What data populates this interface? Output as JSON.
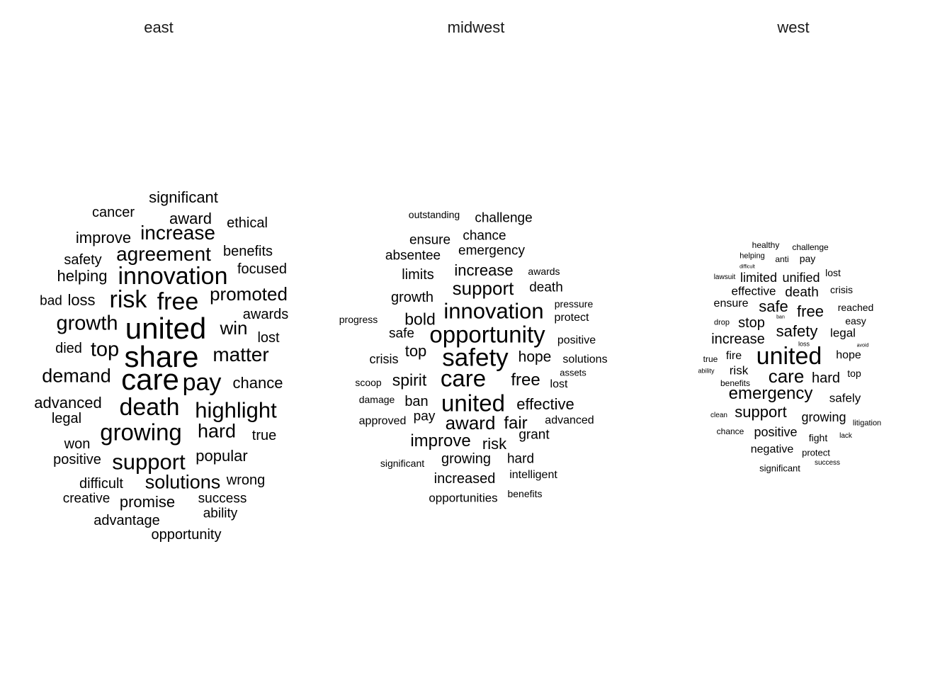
{
  "chart_data": [
    {
      "type": "wordcloud",
      "title": "east",
      "words": [
        {
          "text": "significant",
          "weight": 2
        },
        {
          "text": "cancer",
          "weight": 2
        },
        {
          "text": "award",
          "weight": 2
        },
        {
          "text": "ethical",
          "weight": 2
        },
        {
          "text": "improve",
          "weight": 2
        },
        {
          "text": "increase",
          "weight": 3
        },
        {
          "text": "safety",
          "weight": 2
        },
        {
          "text": "agreement",
          "weight": 3
        },
        {
          "text": "benefits",
          "weight": 2
        },
        {
          "text": "helping",
          "weight": 2
        },
        {
          "text": "innovation",
          "weight": 4
        },
        {
          "text": "focused",
          "weight": 2
        },
        {
          "text": "bad",
          "weight": 2
        },
        {
          "text": "loss",
          "weight": 2
        },
        {
          "text": "risk",
          "weight": 4
        },
        {
          "text": "free",
          "weight": 4
        },
        {
          "text": "promoted",
          "weight": 3
        },
        {
          "text": "awards",
          "weight": 2
        },
        {
          "text": "growth",
          "weight": 3
        },
        {
          "text": "united",
          "weight": 5
        },
        {
          "text": "win",
          "weight": 3
        },
        {
          "text": "lost",
          "weight": 2
        },
        {
          "text": "died",
          "weight": 2
        },
        {
          "text": "top",
          "weight": 3
        },
        {
          "text": "share",
          "weight": 5
        },
        {
          "text": "matter",
          "weight": 3
        },
        {
          "text": "demand",
          "weight": 3
        },
        {
          "text": "care",
          "weight": 5
        },
        {
          "text": "pay",
          "weight": 4
        },
        {
          "text": "chance",
          "weight": 2
        },
        {
          "text": "advanced",
          "weight": 2
        },
        {
          "text": "death",
          "weight": 4
        },
        {
          "text": "highlight",
          "weight": 3
        },
        {
          "text": "legal",
          "weight": 2
        },
        {
          "text": "growing",
          "weight": 4
        },
        {
          "text": "hard",
          "weight": 3
        },
        {
          "text": "true",
          "weight": 2
        },
        {
          "text": "won",
          "weight": 2
        },
        {
          "text": "positive",
          "weight": 2
        },
        {
          "text": "support",
          "weight": 4
        },
        {
          "text": "popular",
          "weight": 2
        },
        {
          "text": "difficult",
          "weight": 2
        },
        {
          "text": "solutions",
          "weight": 3
        },
        {
          "text": "wrong",
          "weight": 2
        },
        {
          "text": "creative",
          "weight": 2
        },
        {
          "text": "promise",
          "weight": 2
        },
        {
          "text": "success",
          "weight": 2
        },
        {
          "text": "ability",
          "weight": 2
        },
        {
          "text": "advantage",
          "weight": 2
        },
        {
          "text": "opportunity",
          "weight": 2
        }
      ]
    },
    {
      "type": "wordcloud",
      "title": "midwest",
      "words": [
        {
          "text": "outstanding",
          "weight": 1
        },
        {
          "text": "challenge",
          "weight": 2
        },
        {
          "text": "ensure",
          "weight": 2
        },
        {
          "text": "chance",
          "weight": 2
        },
        {
          "text": "absentee",
          "weight": 2
        },
        {
          "text": "emergency",
          "weight": 2
        },
        {
          "text": "limits",
          "weight": 2
        },
        {
          "text": "increase",
          "weight": 3
        },
        {
          "text": "awards",
          "weight": 1
        },
        {
          "text": "support",
          "weight": 3
        },
        {
          "text": "death",
          "weight": 2
        },
        {
          "text": "growth",
          "weight": 2
        },
        {
          "text": "pressure",
          "weight": 1
        },
        {
          "text": "innovation",
          "weight": 4
        },
        {
          "text": "progress",
          "weight": 1
        },
        {
          "text": "bold",
          "weight": 3
        },
        {
          "text": "protect",
          "weight": 1
        },
        {
          "text": "safe",
          "weight": 2
        },
        {
          "text": "opportunity",
          "weight": 4
        },
        {
          "text": "positive",
          "weight": 1
        },
        {
          "text": "top",
          "weight": 3
        },
        {
          "text": "crisis",
          "weight": 2
        },
        {
          "text": "safety",
          "weight": 4
        },
        {
          "text": "hope",
          "weight": 2
        },
        {
          "text": "solutions",
          "weight": 1
        },
        {
          "text": "assets",
          "weight": 1
        },
        {
          "text": "scoop",
          "weight": 1
        },
        {
          "text": "spirit",
          "weight": 3
        },
        {
          "text": "care",
          "weight": 4
        },
        {
          "text": "free",
          "weight": 3
        },
        {
          "text": "lost",
          "weight": 1
        },
        {
          "text": "damage",
          "weight": 1
        },
        {
          "text": "ban",
          "weight": 2
        },
        {
          "text": "united",
          "weight": 4
        },
        {
          "text": "effective",
          "weight": 2
        },
        {
          "text": "approved",
          "weight": 1
        },
        {
          "text": "pay",
          "weight": 2
        },
        {
          "text": "award",
          "weight": 3
        },
        {
          "text": "fair",
          "weight": 3
        },
        {
          "text": "advanced",
          "weight": 1
        },
        {
          "text": "grant",
          "weight": 2
        },
        {
          "text": "improve",
          "weight": 3
        },
        {
          "text": "risk",
          "weight": 3
        },
        {
          "text": "significant",
          "weight": 1
        },
        {
          "text": "growing",
          "weight": 2
        },
        {
          "text": "hard",
          "weight": 2
        },
        {
          "text": "intelligent",
          "weight": 1
        },
        {
          "text": "increased",
          "weight": 2
        },
        {
          "text": "opportunities",
          "weight": 2
        },
        {
          "text": "benefits",
          "weight": 1
        }
      ]
    },
    {
      "type": "wordcloud",
      "title": "west",
      "words": [
        {
          "text": "healthy",
          "weight": 1
        },
        {
          "text": "challenge",
          "weight": 1
        },
        {
          "text": "helping",
          "weight": 1
        },
        {
          "text": "anti",
          "weight": 1
        },
        {
          "text": "pay",
          "weight": 1
        },
        {
          "text": "difficult",
          "weight": 0
        },
        {
          "text": "lawsuit",
          "weight": 1
        },
        {
          "text": "limited",
          "weight": 2
        },
        {
          "text": "unified",
          "weight": 2
        },
        {
          "text": "lost",
          "weight": 1
        },
        {
          "text": "effective",
          "weight": 2
        },
        {
          "text": "death",
          "weight": 2
        },
        {
          "text": "crisis",
          "weight": 1
        },
        {
          "text": "ensure",
          "weight": 2
        },
        {
          "text": "safe",
          "weight": 3
        },
        {
          "text": "free",
          "weight": 3
        },
        {
          "text": "reached",
          "weight": 1
        },
        {
          "text": "ban",
          "weight": 0
        },
        {
          "text": "drop",
          "weight": 1
        },
        {
          "text": "stop",
          "weight": 2
        },
        {
          "text": "safety",
          "weight": 3
        },
        {
          "text": "legal",
          "weight": 2
        },
        {
          "text": "easy",
          "weight": 1
        },
        {
          "text": "increase",
          "weight": 2
        },
        {
          "text": "loss",
          "weight": 0
        },
        {
          "text": "avoid",
          "weight": 0
        },
        {
          "text": "true",
          "weight": 1
        },
        {
          "text": "fire",
          "weight": 2
        },
        {
          "text": "united",
          "weight": 4
        },
        {
          "text": "hope",
          "weight": 2
        },
        {
          "text": "ability",
          "weight": 1
        },
        {
          "text": "risk",
          "weight": 2
        },
        {
          "text": "care",
          "weight": 3
        },
        {
          "text": "hard",
          "weight": 2
        },
        {
          "text": "top",
          "weight": 1
        },
        {
          "text": "benefits",
          "weight": 1
        },
        {
          "text": "emergency",
          "weight": 3
        },
        {
          "text": "safely",
          "weight": 2
        },
        {
          "text": "clean",
          "weight": 1
        },
        {
          "text": "support",
          "weight": 3
        },
        {
          "text": "growing",
          "weight": 2
        },
        {
          "text": "litigation",
          "weight": 1
        },
        {
          "text": "chance",
          "weight": 1
        },
        {
          "text": "positive",
          "weight": 2
        },
        {
          "text": "fight",
          "weight": 1
        },
        {
          "text": "lack",
          "weight": 1
        },
        {
          "text": "negative",
          "weight": 2
        },
        {
          "text": "protect",
          "weight": 1
        },
        {
          "text": "significant",
          "weight": 1
        },
        {
          "text": "success",
          "weight": 1
        }
      ]
    }
  ]
}
